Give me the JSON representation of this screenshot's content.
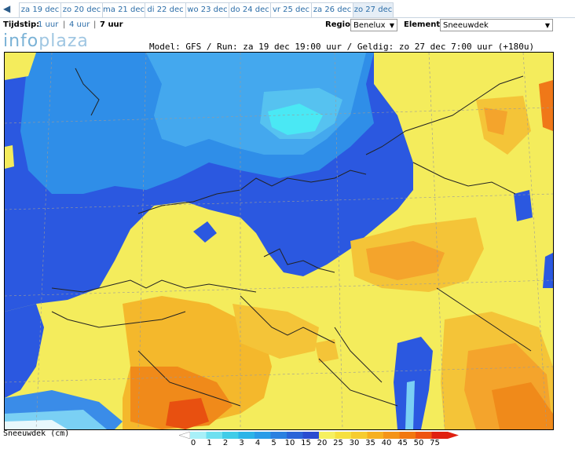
{
  "tabs": {
    "items": [
      {
        "label": "za 19 dec",
        "active": false
      },
      {
        "label": "zo 20 dec",
        "active": false
      },
      {
        "label": "ma 21 dec",
        "active": false
      },
      {
        "label": "di 22 dec",
        "active": false
      },
      {
        "label": "wo 23 dec",
        "active": false
      },
      {
        "label": "do 24 dec",
        "active": false
      },
      {
        "label": "vr 25 dec",
        "active": false
      },
      {
        "label": "za 26 dec",
        "active": false
      },
      {
        "label": "zo 27 dec",
        "active": true
      }
    ]
  },
  "controls": {
    "tijdstip_label": "Tijdstip:",
    "tijdstip_options": [
      "1 uur",
      "4 uur",
      "7 uur"
    ],
    "regio_label": "Regio:",
    "regio_value": "Benelux",
    "element_label": "Element:",
    "element_value": "Sneeuwdek"
  },
  "logo": {
    "part1": "info",
    "part2": "plaza"
  },
  "map": {
    "model_line": "Model: GFS / Run: za 19 dec 19:00 uur / Geldig: zo 27 dec 7:00 uur (+180u)"
  },
  "legend": {
    "title": "Sneeuwdek (cm)",
    "ticks": [
      "0",
      "1",
      "2",
      "3",
      "4",
      "5",
      "10",
      "15",
      "20",
      "25",
      "30",
      "35",
      "40",
      "45",
      "50",
      "75"
    ],
    "colors": [
      "#a8f0f8",
      "#6fe0f0",
      "#40cce8",
      "#2bb4e8",
      "#2a9ce8",
      "#2b80e0",
      "#2a64d8",
      "#2a4cd0",
      "#f6f060",
      "#f6e040",
      "#f6cc30",
      "#f6b020",
      "#f49418",
      "#f27810",
      "#ee5410",
      "#e02010"
    ]
  },
  "colors": {
    "tab_text": "#2b6da8",
    "blue_dark": "#2b58e0",
    "blue_mid": "#2f8ee8",
    "blue_light": "#44b4ee",
    "cyan": "#4ae8f4",
    "yellow": "#f4f064",
    "yellow_dark": "#f4d83c",
    "orange": "#f4a82c",
    "orange_dark": "#f07818",
    "red": "#e85010"
  }
}
